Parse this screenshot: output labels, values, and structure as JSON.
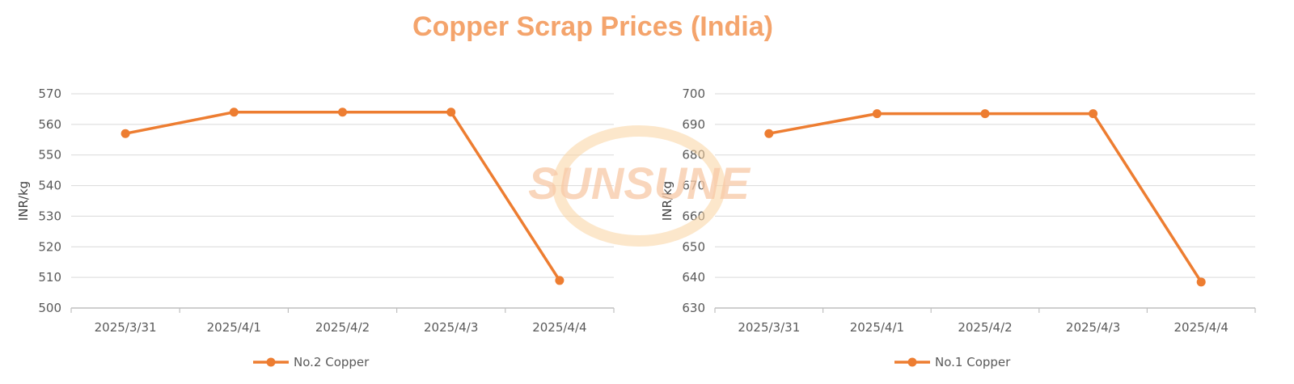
{
  "title": "Copper Scrap Prices (India)",
  "watermark": "SUNSUNE",
  "colors": {
    "series": "#ED7D31",
    "title": "#F4A46C",
    "grid": "#D9D9D9",
    "axis": "#BFBFBF",
    "watermark": "#F8C9A6"
  },
  "chart_data": [
    {
      "type": "line",
      "title": "",
      "categories": [
        "2025/3/31",
        "2025/4/1",
        "2025/4/2",
        "2025/4/3",
        "2025/4/4"
      ],
      "series": [
        {
          "name": "No.2 Copper",
          "values": [
            557,
            564,
            564,
            564,
            509
          ]
        }
      ],
      "xlabel": "",
      "ylabel": "INR/kg",
      "ylim": [
        500,
        570
      ],
      "yticks": [
        500,
        510,
        520,
        530,
        540,
        550,
        560,
        570
      ],
      "grid": true,
      "legend": "bottom"
    },
    {
      "type": "line",
      "title": "",
      "categories": [
        "2025/3/31",
        "2025/4/1",
        "2025/4/2",
        "2025/4/3",
        "2025/4/4"
      ],
      "series": [
        {
          "name": "No.1 Copper",
          "values": [
            687,
            693.5,
            693.5,
            693.5,
            638.5
          ]
        }
      ],
      "xlabel": "",
      "ylabel": "INR/kg",
      "ylim": [
        630,
        700
      ],
      "yticks": [
        630,
        640,
        650,
        660,
        670,
        680,
        690,
        700
      ],
      "grid": true,
      "legend": "bottom"
    }
  ]
}
